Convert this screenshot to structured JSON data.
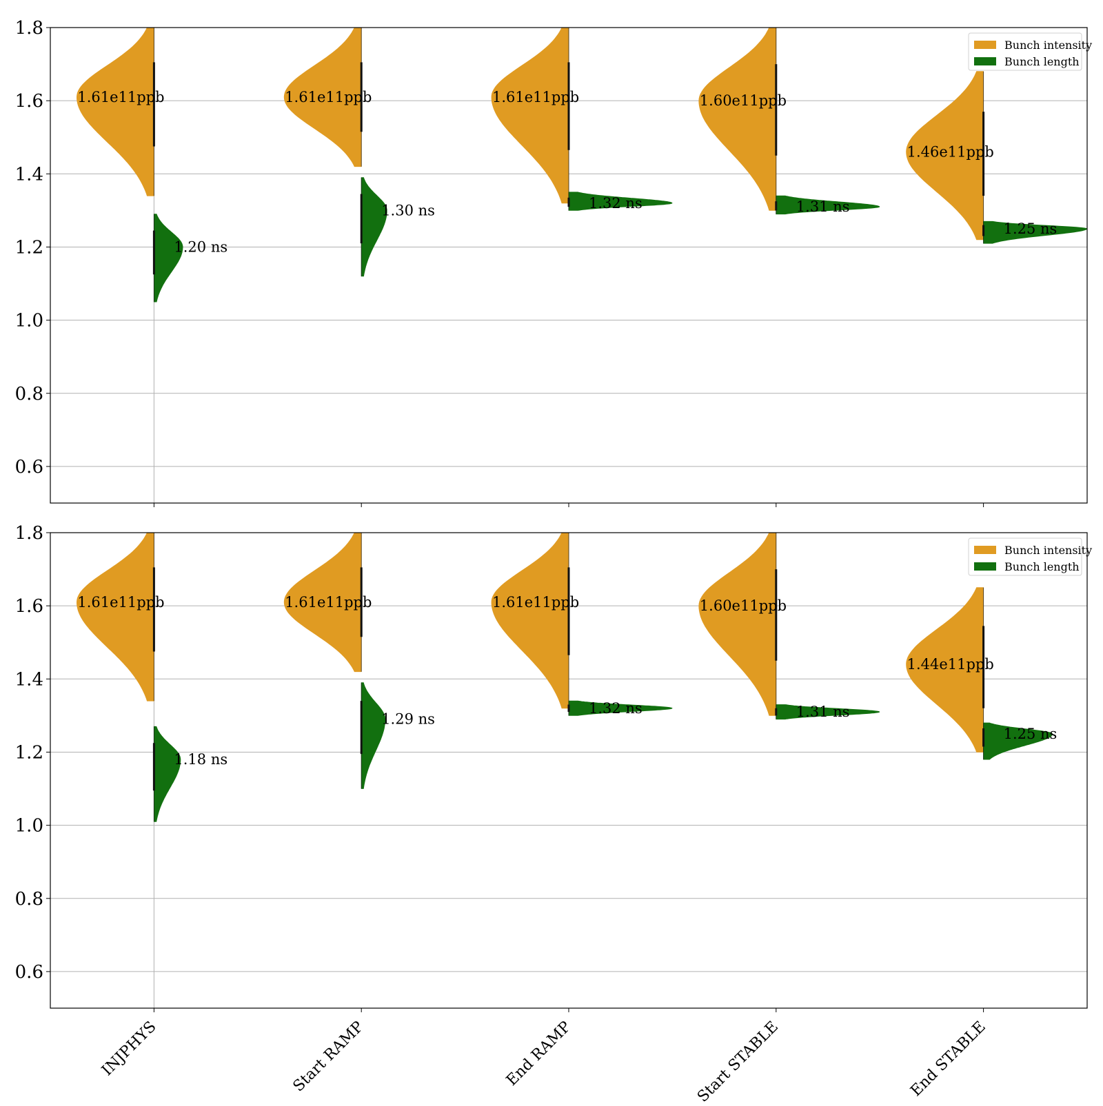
{
  "colors": {
    "intensity": "#e09b22",
    "length": "#12700f",
    "grid": "#b0b0b0",
    "axis": "#000000"
  },
  "chart_data": [
    {
      "type": "violin",
      "ylim": [
        0.5,
        1.8
      ],
      "yticks": [
        "0.6",
        "0.8",
        "1.0",
        "1.2",
        "1.4",
        "1.6",
        "1.8"
      ],
      "categories": [
        "INJPHYS",
        "Start RAMP",
        "End RAMP",
        "Start STABLE",
        "End STABLE"
      ],
      "show_xtick_labels": false,
      "grid": "horizontal",
      "legend": {
        "position": "top-right",
        "entries": [
          "Bunch intensity",
          "Bunch length"
        ]
      },
      "series": [
        {
          "name": "Bunch intensity",
          "side": "left",
          "values": [
            1.61,
            1.61,
            1.61,
            1.6,
            1.46
          ],
          "labels": [
            "1.61e11ppb",
            "1.61e11ppb",
            "1.61e11ppb",
            "1.60e11ppb",
            "1.46e11ppb"
          ],
          "range": [
            [
              1.34,
              1.8
            ],
            [
              1.42,
              1.8
            ],
            [
              1.32,
              1.8
            ],
            [
              1.3,
              1.8
            ],
            [
              1.22,
              1.68
            ]
          ]
        },
        {
          "name": "Bunch length",
          "side": "right",
          "values": [
            1.2,
            1.3,
            1.32,
            1.31,
            1.25
          ],
          "labels": [
            "1.20 ns",
            "1.30 ns",
            "1.32 ns",
            "1.31 ns",
            "1.25 ns"
          ],
          "range": [
            [
              1.05,
              1.29
            ],
            [
              1.12,
              1.39
            ],
            [
              1.3,
              1.35
            ],
            [
              1.29,
              1.34
            ],
            [
              1.21,
              1.27
            ]
          ]
        }
      ]
    },
    {
      "type": "violin",
      "ylim": [
        0.5,
        1.8
      ],
      "yticks": [
        "0.6",
        "0.8",
        "1.0",
        "1.2",
        "1.4",
        "1.6",
        "1.8"
      ],
      "categories": [
        "INJPHYS",
        "Start RAMP",
        "End RAMP",
        "Start STABLE",
        "End STABLE"
      ],
      "show_xtick_labels": true,
      "grid": "horizontal",
      "legend": {
        "position": "top-right",
        "entries": [
          "Bunch intensity",
          "Bunch length"
        ]
      },
      "series": [
        {
          "name": "Bunch intensity",
          "side": "left",
          "values": [
            1.61,
            1.61,
            1.61,
            1.6,
            1.44
          ],
          "labels": [
            "1.61e11ppb",
            "1.61e11ppb",
            "1.61e11ppb",
            "1.60e11ppb",
            "1.44e11ppb"
          ],
          "range": [
            [
              1.34,
              1.8
            ],
            [
              1.42,
              1.8
            ],
            [
              1.32,
              1.8
            ],
            [
              1.3,
              1.8
            ],
            [
              1.2,
              1.65
            ]
          ]
        },
        {
          "name": "Bunch length",
          "side": "right",
          "values": [
            1.18,
            1.29,
            1.32,
            1.31,
            1.25
          ],
          "labels": [
            "1.18 ns",
            "1.29 ns",
            "1.32 ns",
            "1.31 ns",
            "1.25 ns"
          ],
          "range": [
            [
              1.01,
              1.27
            ],
            [
              1.1,
              1.39
            ],
            [
              1.3,
              1.34
            ],
            [
              1.29,
              1.33
            ],
            [
              1.18,
              1.28
            ]
          ]
        }
      ]
    }
  ]
}
